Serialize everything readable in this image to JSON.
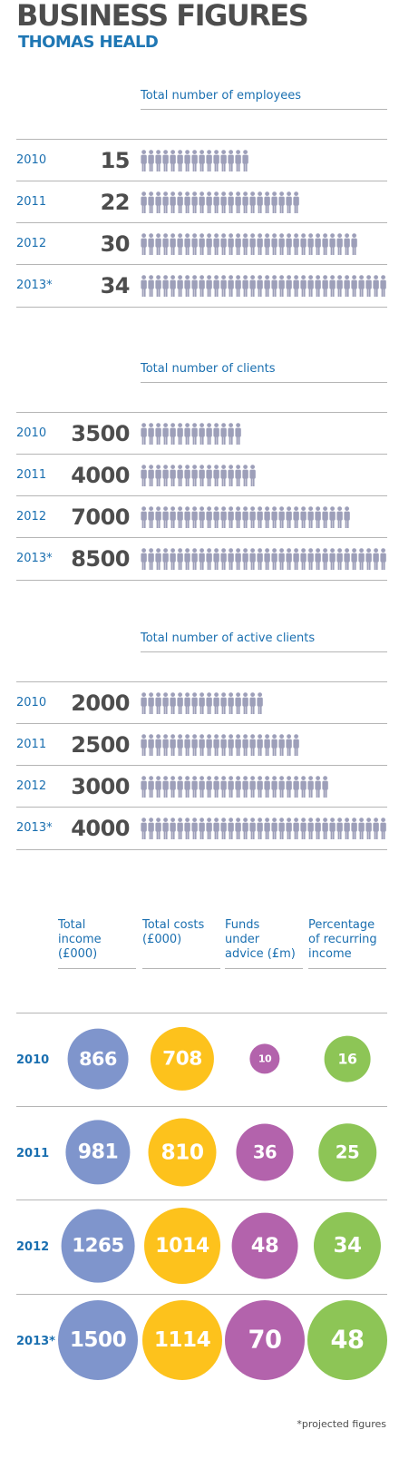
{
  "header": {
    "title": "BUSINESS FIGURES",
    "subtitle": "THOMAS HEALD"
  },
  "chart_data": [
    {
      "type": "bar",
      "title": "Total number of employees",
      "categories": [
        "2010",
        "2011",
        "2012",
        "2013*"
      ],
      "values": [
        15,
        22,
        30,
        34
      ],
      "value_labels": [
        "15",
        "22",
        "30",
        "34"
      ],
      "icon_counts": [
        15,
        22,
        30,
        34
      ],
      "icon": "person-icon"
    },
    {
      "type": "bar",
      "title": "Total number of clients",
      "categories": [
        "2010",
        "2011",
        "2012",
        "2013*"
      ],
      "values": [
        3500,
        4000,
        7000,
        8500
      ],
      "value_labels": [
        "3500",
        "4000",
        "7000",
        "8500"
      ],
      "icon_counts": [
        14,
        16,
        29,
        34
      ],
      "icon": "person-icon"
    },
    {
      "type": "bar",
      "title": "Total number of active clients",
      "categories": [
        "2010",
        "2011",
        "2012",
        "2013*"
      ],
      "values": [
        2000,
        2500,
        3000,
        4000
      ],
      "value_labels": [
        "2000",
        "2500",
        "3000",
        "4000"
      ],
      "icon_counts": [
        17,
        22,
        26,
        34
      ],
      "icon": "person-icon"
    },
    {
      "type": "scatter",
      "categories": [
        "2010",
        "2011",
        "2012",
        "2013*"
      ],
      "series": [
        {
          "name": "Total income (£000)",
          "color": "#7f95cc",
          "values": [
            866,
            981,
            1265,
            1500
          ],
          "labels": [
            "866",
            "981",
            "1265",
            "1500"
          ]
        },
        {
          "name": "Total costs (£000)",
          "color": "#fdc21c",
          "values": [
            708,
            810,
            1014,
            1114
          ],
          "labels": [
            "708",
            "810",
            "1014",
            "1114"
          ]
        },
        {
          "name": "Funds under advice (£m)",
          "color": "#b363ac",
          "values": [
            10,
            36,
            48,
            70
          ],
          "labels": [
            "10",
            "36",
            "48",
            "70"
          ]
        },
        {
          "name": "Percentage of recurring income",
          "color": "#8dc556",
          "values": [
            16,
            25,
            34,
            48
          ],
          "labels": [
            "16",
            "25",
            "34",
            "48"
          ]
        }
      ]
    }
  ],
  "footnote": "*projected figures"
}
